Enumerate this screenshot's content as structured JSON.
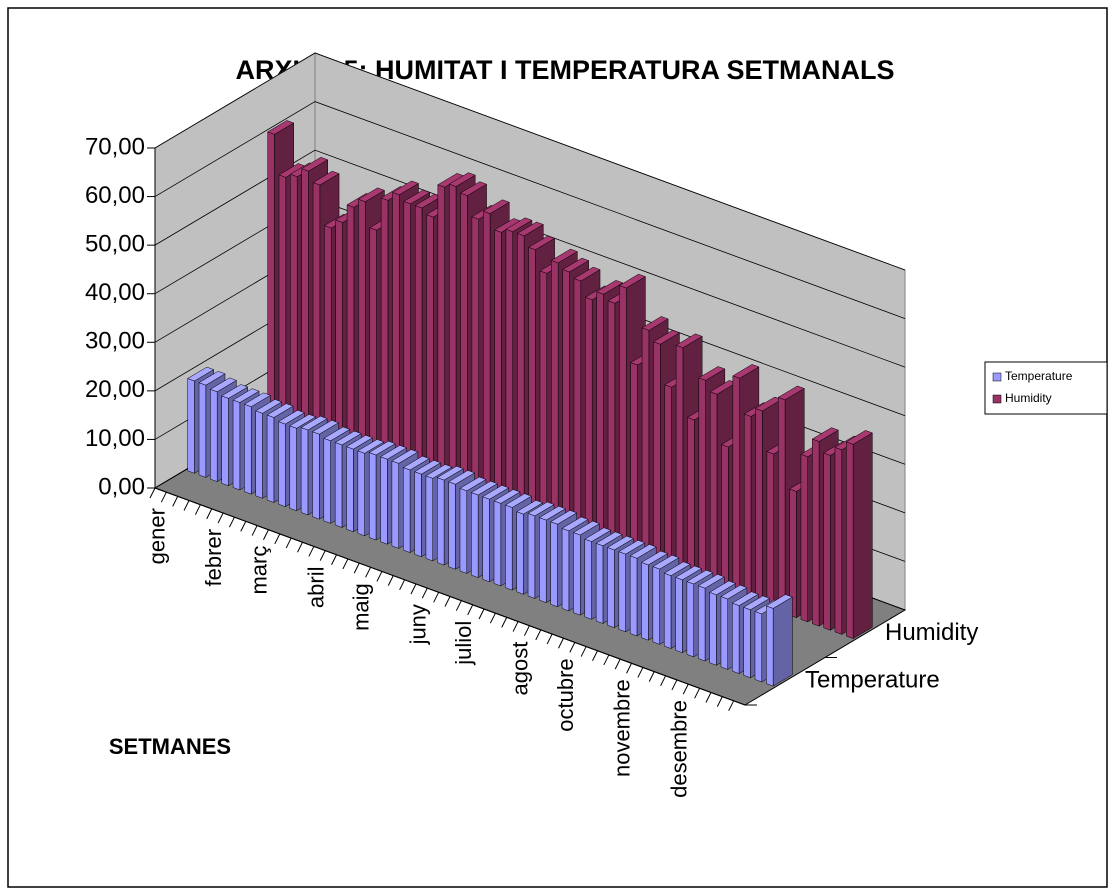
{
  "chart_data": {
    "type": "bar3d",
    "title": "ARXIU - 5: HUMITAT I TEMPERATURA SETMANALS",
    "x_label": "SETMANES",
    "categories": [
      "gener",
      null,
      null,
      null,
      null,
      "febrer",
      null,
      null,
      null,
      "març",
      null,
      null,
      null,
      null,
      "abril",
      null,
      null,
      null,
      "maig",
      null,
      null,
      null,
      null,
      "juny",
      null,
      null,
      null,
      "juliol",
      null,
      null,
      null,
      null,
      "agost",
      null,
      null,
      null,
      "octubre",
      null,
      null,
      null,
      null,
      "novembre",
      null,
      null,
      null,
      null,
      "desembre",
      null,
      null,
      null,
      null,
      null
    ],
    "series": [
      {
        "name": "Temperature",
        "color": "#9999ff",
        "values": [
          19,
          19,
          18.5,
          18,
          18,
          18,
          17.5,
          17.5,
          17,
          17,
          17.5,
          17.5,
          17,
          17,
          17,
          17,
          17.5,
          17.5,
          17.5,
          17,
          17,
          17,
          17.5,
          17.5,
          17,
          17,
          17,
          17,
          17,
          16.5,
          17,
          17,
          17,
          16.5,
          16.5,
          16,
          16,
          16,
          16,
          16,
          15.5,
          15.5,
          15,
          15,
          15,
          15,
          14.5,
          14.5,
          14,
          14,
          14,
          16
        ]
      },
      {
        "name": "Humidity",
        "color": "#993366",
        "values": [
          60,
          52,
          53,
          55,
          53,
          45,
          47,
          51,
          53,
          48,
          55,
          57,
          56,
          56,
          55,
          62,
          63,
          62,
          58,
          60,
          57,
          58,
          58,
          56,
          52,
          55,
          54,
          53,
          50,
          52,
          51,
          55,
          40,
          48,
          46,
          38,
          47,
          33,
          42,
          40,
          30,
          45,
          38,
          40,
          32,
          44,
          26,
          34,
          38,
          36,
          38,
          40
        ]
      }
    ],
    "ylim": [
      0,
      70
    ],
    "yticks": [
      {
        "value": 0,
        "label": "0,00"
      },
      {
        "value": 10,
        "label": "10,00"
      },
      {
        "value": 20,
        "label": "20,00"
      },
      {
        "value": 30,
        "label": "30,00"
      },
      {
        "value": 40,
        "label": "40,00"
      },
      {
        "value": 50,
        "label": "50,00"
      },
      {
        "value": 60,
        "label": "60,00"
      },
      {
        "value": 70,
        "label": "70,00"
      }
    ],
    "grid": true,
    "legend": "right"
  }
}
